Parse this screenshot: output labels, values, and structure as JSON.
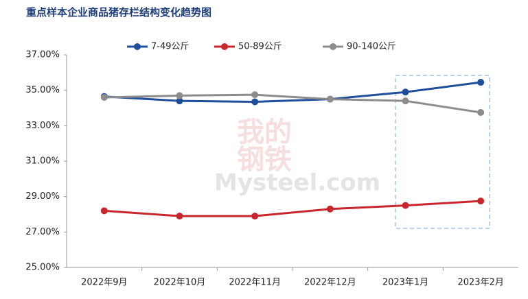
{
  "chart_data": {
    "type": "line",
    "title": "重点样本企业商品猪存栏结构变化趋势图",
    "watermark": [
      "我的",
      "钢铁",
      "Mysteel.com"
    ],
    "categories": [
      "2022年9月",
      "2022年10月",
      "2022年11月",
      "2022年12月",
      "2023年1月",
      "2023年2月"
    ],
    "series": [
      {
        "name": "7-49公斤",
        "color": "#1f4e9c",
        "values": [
          34.65,
          34.4,
          34.35,
          34.5,
          34.9,
          35.45
        ]
      },
      {
        "name": "50-89公斤",
        "color": "#c9252c",
        "values": [
          28.2,
          27.9,
          27.9,
          28.3,
          28.5,
          28.75
        ]
      },
      {
        "name": "90-140公斤",
        "color": "#8c8c8c",
        "values": [
          34.6,
          34.7,
          34.75,
          34.5,
          34.4,
          33.75
        ]
      }
    ],
    "ylim": [
      25,
      37
    ],
    "yticks": [
      {
        "value": 25,
        "label": "25.00%"
      },
      {
        "value": 27,
        "label": "27.00%"
      },
      {
        "value": 29,
        "label": "29.00%"
      },
      {
        "value": 31,
        "label": "31.00%"
      },
      {
        "value": 33,
        "label": "33.00%"
      },
      {
        "value": 35,
        "label": "35.00%"
      },
      {
        "value": 37,
        "label": "37.00%"
      }
    ],
    "grid": false,
    "legend": "top"
  }
}
